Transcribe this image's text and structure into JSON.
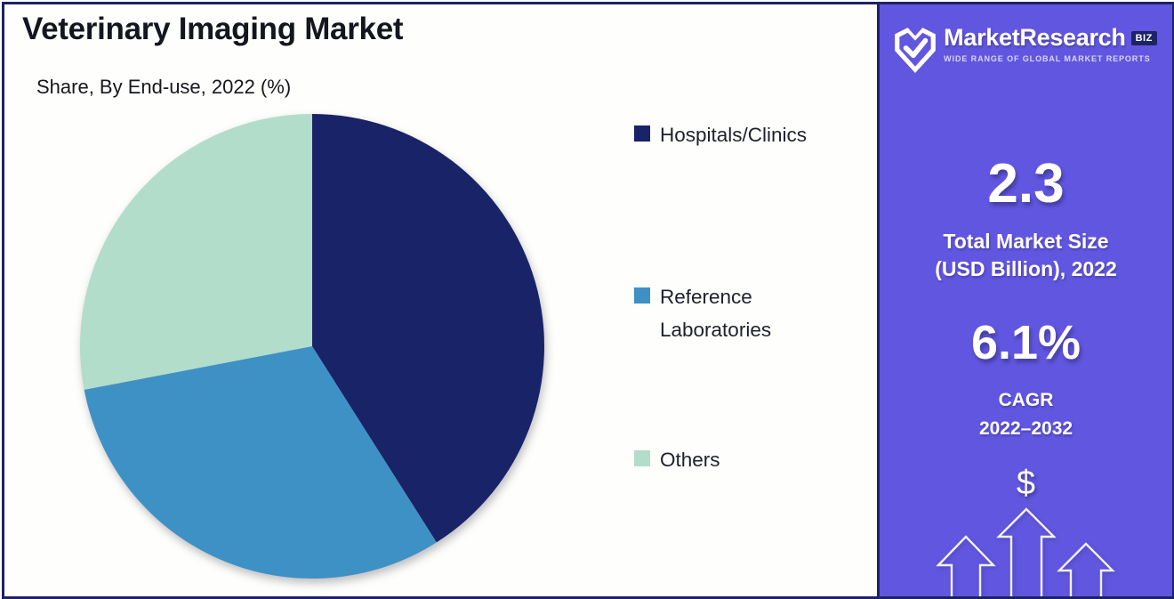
{
  "header": {
    "title": "Veterinary Imaging Market",
    "subtitle": "Share, By End-use, 2022 (%)"
  },
  "chart_data": {
    "type": "pie",
    "title": "Veterinary Imaging Market",
    "subtitle": "Share, By End-use, 2022 (%)",
    "unit": "%",
    "start_angle_deg": 0,
    "direction": "clockwise",
    "legend_position": "right",
    "slices": [
      {
        "label": "Hospitals/Clinics",
        "value": 41,
        "color": "#182368"
      },
      {
        "label": "Reference Laboratories",
        "value": 31,
        "color": "#3e91c5"
      },
      {
        "label": "Others",
        "value": 28,
        "color": "#b2ddcb"
      }
    ]
  },
  "sidebar": {
    "brand": "MarketResearch",
    "brand_badge": "BIZ",
    "tagline": "WIDE RANGE OF GLOBAL MARKET REPORTS",
    "stats": [
      {
        "value": "2.3",
        "label_line1": "Total Market Size",
        "label_line2": "(USD Billion), 2022"
      },
      {
        "value": "6.1%",
        "label_line1": "CAGR",
        "label_line2": "2022–2032"
      }
    ],
    "dollar_symbol": "$"
  },
  "colors": {
    "frame_border": "#1c2366",
    "panel_background": "#fefefc",
    "sidebar_background": "#6156e0",
    "badge_background": "#1c2366",
    "text_dark": "#14161f",
    "text_light": "#ffffff"
  }
}
